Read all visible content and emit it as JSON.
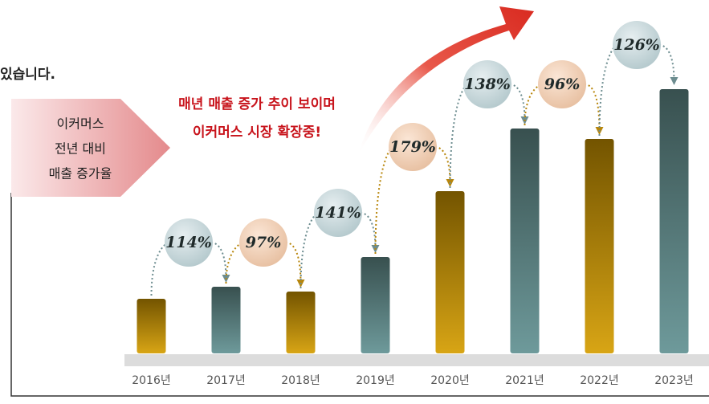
{
  "chart_data": {
    "type": "bar",
    "intro_text": "있습니다.",
    "callout": [
      "이커머스",
      "전년 대비",
      "매출 증가율"
    ],
    "headline": [
      "매년 매출 증가 추이 보이며",
      "이커머스 시장 확장중!"
    ],
    "categories": [
      "2016년",
      "2017년",
      "2018년",
      "2019년",
      "2020년",
      "2021년",
      "2022년",
      "2023년"
    ],
    "values": [
      68,
      83,
      77,
      120,
      202,
      280,
      267,
      329
    ],
    "colors": [
      "gold",
      "teal",
      "gold",
      "teal",
      "gold",
      "teal",
      "gold",
      "teal"
    ],
    "growth": {
      "values": [
        114,
        97,
        141,
        179,
        138,
        96,
        126
      ],
      "value_labels": [
        "114%",
        "97%",
        "141%",
        "179%",
        "138%",
        "96%",
        "126%"
      ]
    }
  }
}
